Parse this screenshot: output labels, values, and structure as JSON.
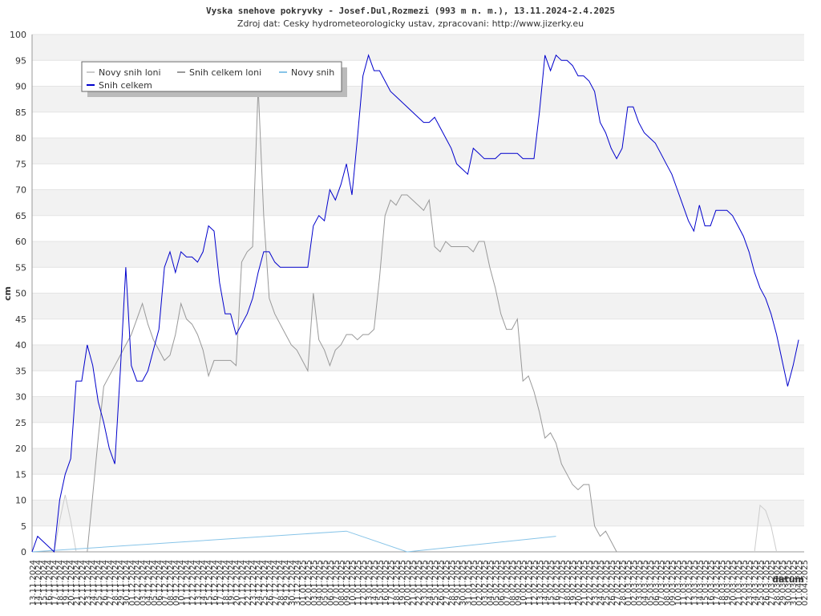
{
  "chart_data": {
    "type": "line",
    "title": "Vyska snehove pokryvky - Josef.Dul,Rozmezi (993 m n. m.), 13.11.2024-2.4.2025",
    "subtitle": "Zdroj dat: Cesky hydrometeorologicky ustav, zpracovani: http://www.jizerky.eu",
    "y_label": "cm",
    "x_label": "datum",
    "ylim": [
      0,
      100
    ],
    "yticks": [
      0,
      5,
      10,
      15,
      20,
      25,
      30,
      35,
      40,
      45,
      50,
      55,
      60,
      65,
      70,
      75,
      80,
      85,
      90,
      95,
      100
    ],
    "grid": true,
    "legend": "upper-left",
    "categories": [
      "13.11.2024",
      "14.11.2024",
      "15.11.2024",
      "16.11.2024",
      "17.11.2024",
      "18.11.2024",
      "19.11.2024",
      "20.11.2024",
      "21.11.2024",
      "22.11.2024",
      "23.11.2024",
      "24.11.2024",
      "25.11.2024",
      "26.11.2024",
      "27.11.2024",
      "28.11.2024",
      "29.11.2024",
      "30.11.2024",
      "01.12.2024",
      "02.12.2024",
      "03.12.2024",
      "04.12.2024",
      "05.12.2024",
      "06.12.2024",
      "07.12.2024",
      "08.12.2024",
      "09.12.2024",
      "10.12.2024",
      "11.12.2024",
      "12.12.2024",
      "13.12.2024",
      "14.12.2024",
      "15.12.2024",
      "16.12.2024",
      "17.12.2024",
      "18.12.2024",
      "19.12.2024",
      "20.12.2024",
      "21.12.2024",
      "22.12.2024",
      "23.12.2024",
      "24.12.2024",
      "25.12.2024",
      "26.12.2024",
      "27.12.2024",
      "28.12.2024",
      "29.12.2024",
      "30.12.2024",
      "31.12.2024",
      "01.01.2025",
      "02.01.2025",
      "03.01.2025",
      "04.01.2025",
      "05.01.2025",
      "06.01.2025",
      "07.01.2025",
      "08.01.2025",
      "09.01.2025",
      "10.01.2025",
      "11.01.2025",
      "12.01.2025",
      "13.01.2025",
      "14.01.2025",
      "15.01.2025",
      "16.01.2025",
      "17.01.2025",
      "18.01.2025",
      "19.01.2025",
      "20.01.2025",
      "21.01.2025",
      "22.01.2025",
      "23.01.2025",
      "24.01.2025",
      "25.01.2025",
      "26.01.2025",
      "27.01.2025",
      "28.01.2025",
      "29.01.2025",
      "30.01.2025",
      "31.01.2025",
      "01.02.2025",
      "02.02.2025",
      "03.02.2025",
      "04.02.2025",
      "05.02.2025",
      "06.02.2025",
      "07.02.2025",
      "08.02.2025",
      "09.02.2025",
      "10.02.2025",
      "11.02.2025",
      "12.02.2025",
      "13.02.2025",
      "14.02.2025",
      "15.02.2025",
      "16.02.2025",
      "17.02.2025",
      "18.02.2025",
      "19.02.2025",
      "20.02.2025",
      "21.02.2025",
      "22.02.2025",
      "23.02.2025",
      "24.02.2025",
      "25.02.2025",
      "26.02.2025",
      "27.02.2025",
      "28.02.2025",
      "01.03.2025",
      "02.03.2025",
      "03.03.2025",
      "04.03.2025",
      "05.03.2025",
      "06.03.2025",
      "07.03.2025",
      "08.03.2025",
      "09.03.2025",
      "10.03.2025",
      "11.03.2025",
      "12.03.2025",
      "13.03.2025",
      "14.03.2025",
      "15.03.2025",
      "16.03.2025",
      "17.03.2025",
      "18.03.2025",
      "19.03.2025",
      "20.03.2025",
      "21.03.2025",
      "22.03.2025",
      "23.03.2025",
      "24.03.2025",
      "25.03.2025",
      "26.03.2025",
      "27.03.2025",
      "28.03.2025",
      "29.03.2025",
      "30.03.2025",
      "31.03.2025",
      "01.04.2025",
      "02.04.2025"
    ],
    "series": [
      {
        "name": "Novy snih loni",
        "color": "#cccccc",
        "values": [
          null,
          null,
          null,
          null,
          0,
          6,
          11,
          6,
          0,
          null,
          null,
          null,
          null,
          null,
          null,
          null,
          null,
          null,
          null,
          null,
          null,
          null,
          null,
          null,
          null,
          null,
          null,
          null,
          null,
          null,
          null,
          null,
          null,
          null,
          null,
          null,
          null,
          null,
          null,
          null,
          null,
          null,
          null,
          null,
          null,
          null,
          null,
          null,
          null,
          null,
          null,
          null,
          null,
          null,
          null,
          null,
          null,
          null,
          null,
          null,
          null,
          null,
          null,
          null,
          null,
          null,
          null,
          null,
          null,
          null,
          null,
          null,
          null,
          null,
          null,
          null,
          null,
          null,
          null,
          null,
          null,
          null,
          null,
          null,
          null,
          null,
          null,
          null,
          null,
          null,
          null,
          null,
          null,
          null,
          null,
          null,
          null,
          null,
          null,
          null,
          null,
          null,
          null,
          null,
          null,
          null,
          null,
          null,
          null,
          null,
          null,
          null,
          null,
          null,
          null,
          null,
          null,
          null,
          null,
          null,
          null,
          null,
          null,
          null,
          null,
          null,
          null,
          null,
          null,
          null,
          null,
          0,
          9,
          8,
          5,
          0,
          null,
          null,
          null,
          null,
          null
        ]
      },
      {
        "name": "Snih celkem loni",
        "color": "#999999",
        "values": [
          null,
          null,
          null,
          null,
          null,
          null,
          null,
          null,
          null,
          null,
          0,
          11,
          22,
          32,
          34,
          36,
          38,
          40,
          42,
          45,
          48,
          44,
          41,
          39,
          37,
          38,
          42,
          48,
          45,
          44,
          42,
          39,
          34,
          37,
          37,
          37,
          37,
          36,
          56,
          58,
          59,
          90,
          65,
          49,
          46,
          44,
          42,
          40,
          39,
          37,
          35,
          50,
          41,
          39,
          36,
          39,
          40,
          42,
          42,
          41,
          42,
          42,
          43,
          53,
          65,
          68,
          67,
          69,
          69,
          68,
          67,
          66,
          68,
          59,
          58,
          60,
          59,
          59,
          59,
          59,
          58,
          60,
          60,
          55,
          51,
          46,
          43,
          43,
          45,
          33,
          34,
          31,
          27,
          22,
          23,
          21,
          17,
          15,
          13,
          12,
          13,
          13,
          5,
          3,
          4,
          2,
          0,
          null,
          null,
          null,
          null,
          null,
          null,
          null,
          null,
          null,
          null,
          null,
          null,
          null,
          null,
          null,
          null,
          null,
          null,
          null,
          null,
          null,
          null,
          null,
          null,
          null,
          null,
          null,
          null,
          null,
          null,
          null,
          null,
          null,
          null
        ]
      },
      {
        "name": "Novy snih",
        "color": "#87c4e8",
        "connect_gaps": true,
        "values": [
          0,
          null,
          null,
          null,
          null,
          null,
          null,
          null,
          null,
          null,
          null,
          null,
          null,
          null,
          null,
          null,
          null,
          null,
          null,
          null,
          null,
          null,
          null,
          null,
          null,
          null,
          null,
          null,
          null,
          null,
          null,
          null,
          null,
          null,
          null,
          null,
          null,
          null,
          null,
          null,
          null,
          null,
          null,
          null,
          null,
          null,
          null,
          null,
          null,
          null,
          null,
          null,
          null,
          null,
          null,
          null,
          null,
          4,
          null,
          null,
          null,
          null,
          null,
          null,
          null,
          null,
          null,
          null,
          0,
          null,
          null,
          null,
          null,
          null,
          null,
          null,
          null,
          null,
          null,
          null,
          null,
          null,
          null,
          null,
          null,
          null,
          null,
          null,
          null,
          null,
          null,
          null,
          null,
          null,
          null,
          3,
          null,
          null,
          null,
          null,
          null,
          null,
          null,
          null,
          null,
          null,
          null,
          null,
          null,
          null,
          null,
          null,
          null,
          null,
          null,
          null,
          null,
          null,
          null,
          null,
          null,
          null,
          null,
          null,
          null,
          null,
          null,
          null,
          null,
          null,
          null,
          null,
          null,
          null,
          null,
          null,
          null,
          null,
          null,
          null,
          null
        ]
      },
      {
        "name": "Snih celkem",
        "color": "#0000cc",
        "values": [
          0,
          3,
          2,
          1,
          0,
          10,
          15,
          18,
          33,
          33,
          40,
          36,
          29,
          25,
          20,
          17,
          35,
          55,
          36,
          33,
          33,
          35,
          39,
          43,
          55,
          58,
          54,
          58,
          57,
          57,
          56,
          58,
          63,
          62,
          52,
          46,
          46,
          42,
          44,
          46,
          49,
          54,
          58,
          58,
          56,
          55,
          55,
          55,
          55,
          55,
          55,
          63,
          65,
          64,
          70,
          68,
          71,
          75,
          69,
          80,
          92,
          96,
          93,
          93,
          91,
          89,
          88,
          87,
          86,
          85,
          84,
          83,
          83,
          84,
          82,
          80,
          78,
          75,
          74,
          73,
          78,
          77,
          76,
          76,
          76,
          77,
          77,
          77,
          77,
          76,
          76,
          76,
          85,
          96,
          93,
          96,
          95,
          95,
          94,
          92,
          92,
          91,
          89,
          83,
          81,
          78,
          76,
          78,
          86,
          86,
          83,
          81,
          80,
          79,
          77,
          75,
          73,
          70,
          67,
          64,
          62,
          67,
          63,
          63,
          66,
          66,
          66,
          65,
          63,
          61,
          58,
          54,
          51,
          49,
          46,
          42,
          37,
          32,
          36,
          41,
          null
        ]
      }
    ]
  }
}
